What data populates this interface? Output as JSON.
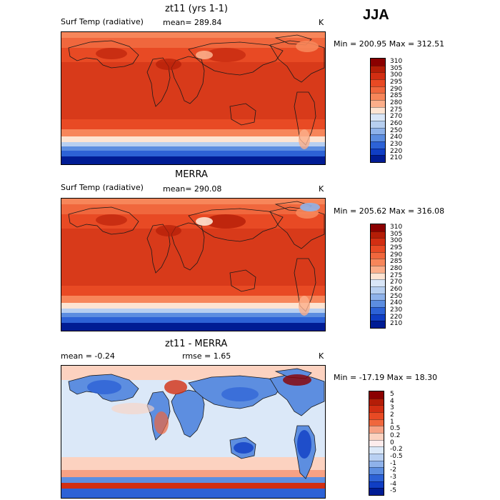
{
  "season": "JJA",
  "panels": [
    {
      "title": "zt11 (yrs 1-1)",
      "variable": "Surf Temp (radiative)",
      "stat1": "mean= 289.84",
      "stat2": "",
      "unit": "K",
      "minmax": "Min = 200.95 Max = 312.51",
      "levels": [
        "310",
        "305",
        "300",
        "295",
        "290",
        "285",
        "280",
        "275",
        "270",
        "260",
        "250",
        "240",
        "230",
        "220",
        "210"
      ],
      "colors": [
        "#8b0000",
        "#b41d07",
        "#d22e12",
        "#e84a24",
        "#f0673d",
        "#f7865a",
        "#fbae8a",
        "#fde4d2",
        "#d9e6f7",
        "#b7cff0",
        "#8eb2ea",
        "#5c8de0",
        "#2d62d6",
        "#103ec4",
        "#001c94"
      ]
    },
    {
      "title": "MERRA",
      "variable": "Surf Temp (radiative)",
      "stat1": "mean= 290.08",
      "stat2": "",
      "unit": "K",
      "minmax": "Min = 205.62 Max = 316.08",
      "levels": [
        "310",
        "305",
        "300",
        "295",
        "290",
        "285",
        "280",
        "275",
        "270",
        "260",
        "250",
        "240",
        "230",
        "220",
        "210"
      ],
      "colors": [
        "#8b0000",
        "#b41d07",
        "#d22e12",
        "#e84a24",
        "#f0673d",
        "#f7865a",
        "#fbae8a",
        "#fde4d2",
        "#d9e6f7",
        "#b7cff0",
        "#8eb2ea",
        "#5c8de0",
        "#2d62d6",
        "#103ec4",
        "#001c94"
      ]
    },
    {
      "title": "zt11 - MERRA",
      "variable": "",
      "stat1": "mean =   -0.24",
      "stat2": "rmse =    1.65",
      "unit": "K",
      "minmax": "Min = -17.19 Max =  18.30",
      "levels": [
        "5",
        "4",
        "3",
        "2",
        "1",
        "0.5",
        "0.2",
        "0",
        "-0.2",
        "-0.5",
        "-1",
        "-2",
        "-3",
        "-4",
        "-5"
      ],
      "colors": [
        "#8b0000",
        "#b41d07",
        "#d22e12",
        "#e84a24",
        "#f0673d",
        "#f7a184",
        "#fcd2c0",
        "#fdecec",
        "#dbe8f8",
        "#b9d0f2",
        "#8fb2ea",
        "#5d8ee0",
        "#2d62d6",
        "#103ec4",
        "#001c94"
      ]
    }
  ],
  "chart_data": [
    {
      "type": "heatmap",
      "title": "zt11 (yrs 1-1)",
      "subtitle": "Surf Temp (radiative)",
      "mean": 289.84,
      "min": 200.95,
      "max": 312.51,
      "unit": "K",
      "colorbar_levels": [
        310,
        305,
        300,
        295,
        290,
        285,
        280,
        275,
        270,
        260,
        250,
        240,
        230,
        220,
        210
      ]
    },
    {
      "type": "heatmap",
      "title": "MERRA",
      "subtitle": "Surf Temp (radiative)",
      "mean": 290.08,
      "min": 205.62,
      "max": 316.08,
      "unit": "K",
      "colorbar_levels": [
        310,
        305,
        300,
        295,
        290,
        285,
        280,
        275,
        270,
        260,
        250,
        240,
        230,
        220,
        210
      ]
    },
    {
      "type": "heatmap",
      "title": "zt11 - MERRA",
      "mean": -0.24,
      "rmse": 1.65,
      "min": -17.19,
      "max": 18.3,
      "unit": "K",
      "colorbar_levels": [
        5,
        4,
        3,
        2,
        1,
        0.5,
        0.2,
        0,
        -0.2,
        -0.5,
        -1,
        -2,
        -3,
        -4,
        -5
      ]
    }
  ]
}
